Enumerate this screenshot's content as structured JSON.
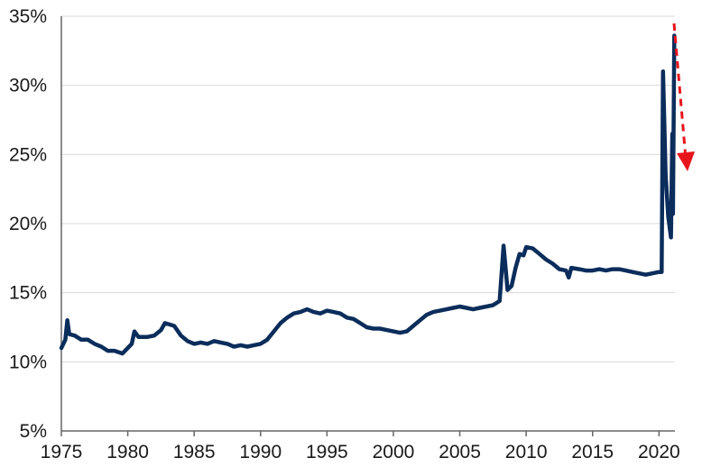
{
  "chart_data": {
    "type": "line",
    "title": "",
    "xlabel": "",
    "ylabel": "",
    "xlim": [
      1975,
      2021.2
    ],
    "ylim": [
      5,
      35
    ],
    "grid": "horizontal",
    "legend": "none",
    "x_ticks": [
      1975,
      1980,
      1985,
      1990,
      1995,
      2000,
      2005,
      2010,
      2015,
      2020
    ],
    "x_tick_labels": [
      "1975",
      "1980",
      "1985",
      "1990",
      "1995",
      "2000",
      "2005",
      "2010",
      "2015",
      "2020"
    ],
    "y_ticks": [
      5,
      10,
      15,
      20,
      25,
      30,
      35
    ],
    "y_tick_labels": [
      "5%",
      "10%",
      "15%",
      "20%",
      "25%",
      "30%",
      "35%"
    ],
    "series": [
      {
        "color": "#0b2d5b",
        "points": [
          [
            1975.0,
            11.0
          ],
          [
            1975.3,
            11.6
          ],
          [
            1975.45,
            13.0
          ],
          [
            1975.6,
            12.0
          ],
          [
            1976.0,
            11.9
          ],
          [
            1976.5,
            11.6
          ],
          [
            1977.0,
            11.6
          ],
          [
            1977.5,
            11.3
          ],
          [
            1978.0,
            11.1
          ],
          [
            1978.5,
            10.8
          ],
          [
            1979.0,
            10.8
          ],
          [
            1979.6,
            10.6
          ],
          [
            1980.0,
            11.0
          ],
          [
            1980.3,
            11.3
          ],
          [
            1980.5,
            12.2
          ],
          [
            1980.8,
            11.8
          ],
          [
            1981.5,
            11.8
          ],
          [
            1982.0,
            11.9
          ],
          [
            1982.5,
            12.3
          ],
          [
            1982.8,
            12.8
          ],
          [
            1983.5,
            12.6
          ],
          [
            1984.0,
            11.9
          ],
          [
            1984.5,
            11.5
          ],
          [
            1985.0,
            11.3
          ],
          [
            1985.5,
            11.4
          ],
          [
            1986.0,
            11.3
          ],
          [
            1986.5,
            11.5
          ],
          [
            1987.0,
            11.4
          ],
          [
            1987.5,
            11.3
          ],
          [
            1988.0,
            11.1
          ],
          [
            1988.5,
            11.2
          ],
          [
            1989.0,
            11.1
          ],
          [
            1989.5,
            11.2
          ],
          [
            1990.0,
            11.3
          ],
          [
            1990.5,
            11.6
          ],
          [
            1991.0,
            12.2
          ],
          [
            1991.5,
            12.8
          ],
          [
            1992.0,
            13.2
          ],
          [
            1992.5,
            13.5
          ],
          [
            1993.0,
            13.6
          ],
          [
            1993.5,
            13.8
          ],
          [
            1994.0,
            13.6
          ],
          [
            1994.5,
            13.5
          ],
          [
            1995.0,
            13.7
          ],
          [
            1995.5,
            13.6
          ],
          [
            1996.0,
            13.5
          ],
          [
            1996.5,
            13.2
          ],
          [
            1997.0,
            13.1
          ],
          [
            1997.5,
            12.8
          ],
          [
            1998.0,
            12.5
          ],
          [
            1998.5,
            12.4
          ],
          [
            1999.0,
            12.4
          ],
          [
            1999.5,
            12.3
          ],
          [
            2000.0,
            12.2
          ],
          [
            2000.5,
            12.1
          ],
          [
            2001.0,
            12.2
          ],
          [
            2001.5,
            12.6
          ],
          [
            2002.0,
            13.0
          ],
          [
            2002.5,
            13.4
          ],
          [
            2003.0,
            13.6
          ],
          [
            2003.5,
            13.7
          ],
          [
            2004.0,
            13.8
          ],
          [
            2004.5,
            13.9
          ],
          [
            2005.0,
            14.0
          ],
          [
            2005.5,
            13.9
          ],
          [
            2006.0,
            13.8
          ],
          [
            2006.5,
            13.9
          ],
          [
            2007.0,
            14.0
          ],
          [
            2007.5,
            14.1
          ],
          [
            2008.0,
            14.4
          ],
          [
            2008.3,
            18.4
          ],
          [
            2008.6,
            15.2
          ],
          [
            2008.9,
            15.5
          ],
          [
            2009.2,
            16.8
          ],
          [
            2009.5,
            17.8
          ],
          [
            2009.8,
            17.7
          ],
          [
            2010.0,
            18.3
          ],
          [
            2010.5,
            18.2
          ],
          [
            2011.0,
            17.8
          ],
          [
            2011.5,
            17.4
          ],
          [
            2012.0,
            17.1
          ],
          [
            2012.5,
            16.7
          ],
          [
            2013.0,
            16.6
          ],
          [
            2013.2,
            16.1
          ],
          [
            2013.4,
            16.8
          ],
          [
            2014.0,
            16.7
          ],
          [
            2014.5,
            16.6
          ],
          [
            2015.0,
            16.6
          ],
          [
            2015.5,
            16.7
          ],
          [
            2016.0,
            16.6
          ],
          [
            2016.5,
            16.7
          ],
          [
            2017.0,
            16.7
          ],
          [
            2017.5,
            16.6
          ],
          [
            2018.0,
            16.5
          ],
          [
            2018.5,
            16.4
          ],
          [
            2019.0,
            16.3
          ],
          [
            2019.5,
            16.4
          ],
          [
            2020.0,
            16.5
          ],
          [
            2020.2,
            16.5
          ],
          [
            2020.3,
            31.0
          ],
          [
            2020.5,
            23.5
          ],
          [
            2020.7,
            20.5
          ],
          [
            2020.9,
            19.0
          ],
          [
            2021.0,
            26.5
          ],
          [
            2021.05,
            20.7
          ],
          [
            2021.15,
            33.6
          ]
        ]
      }
    ],
    "annotation": {
      "type": "dashed-arrow",
      "color": "#e8141c",
      "direction": "down"
    }
  }
}
